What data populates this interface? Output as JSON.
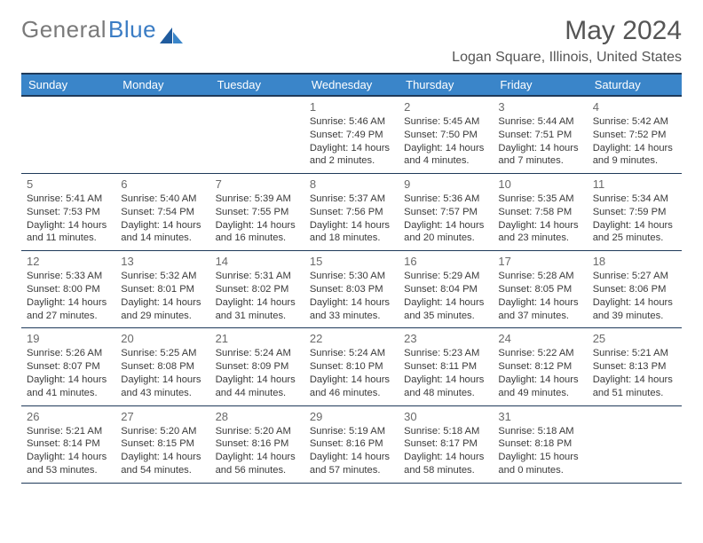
{
  "logo": {
    "part1": "General",
    "part2": "Blue"
  },
  "title": "May 2024",
  "location": "Logan Square, Illinois, United States",
  "colors": {
    "header_bg": "#3a85c9",
    "header_text": "#ffffff",
    "border": "#1f3a5a",
    "body_text": "#3a3a3a",
    "daynum": "#6a6a6a",
    "logo_gray": "#7a7a7a",
    "logo_blue": "#3a7cc4",
    "title_color": "#555555",
    "background": "#ffffff"
  },
  "typography": {
    "month_title_size": 30,
    "location_size": 16,
    "dayhead_size": 13,
    "daynum_size": 13,
    "detail_size": 11.2,
    "font_family": "Arial"
  },
  "day_names": [
    "Sunday",
    "Monday",
    "Tuesday",
    "Wednesday",
    "Thursday",
    "Friday",
    "Saturday"
  ],
  "weeks": [
    [
      null,
      null,
      null,
      {
        "n": "1",
        "sr": "5:46 AM",
        "ss": "7:49 PM",
        "dl": "14 hours and 2 minutes."
      },
      {
        "n": "2",
        "sr": "5:45 AM",
        "ss": "7:50 PM",
        "dl": "14 hours and 4 minutes."
      },
      {
        "n": "3",
        "sr": "5:44 AM",
        "ss": "7:51 PM",
        "dl": "14 hours and 7 minutes."
      },
      {
        "n": "4",
        "sr": "5:42 AM",
        "ss": "7:52 PM",
        "dl": "14 hours and 9 minutes."
      }
    ],
    [
      {
        "n": "5",
        "sr": "5:41 AM",
        "ss": "7:53 PM",
        "dl": "14 hours and 11 minutes."
      },
      {
        "n": "6",
        "sr": "5:40 AM",
        "ss": "7:54 PM",
        "dl": "14 hours and 14 minutes."
      },
      {
        "n": "7",
        "sr": "5:39 AM",
        "ss": "7:55 PM",
        "dl": "14 hours and 16 minutes."
      },
      {
        "n": "8",
        "sr": "5:37 AM",
        "ss": "7:56 PM",
        "dl": "14 hours and 18 minutes."
      },
      {
        "n": "9",
        "sr": "5:36 AM",
        "ss": "7:57 PM",
        "dl": "14 hours and 20 minutes."
      },
      {
        "n": "10",
        "sr": "5:35 AM",
        "ss": "7:58 PM",
        "dl": "14 hours and 23 minutes."
      },
      {
        "n": "11",
        "sr": "5:34 AM",
        "ss": "7:59 PM",
        "dl": "14 hours and 25 minutes."
      }
    ],
    [
      {
        "n": "12",
        "sr": "5:33 AM",
        "ss": "8:00 PM",
        "dl": "14 hours and 27 minutes."
      },
      {
        "n": "13",
        "sr": "5:32 AM",
        "ss": "8:01 PM",
        "dl": "14 hours and 29 minutes."
      },
      {
        "n": "14",
        "sr": "5:31 AM",
        "ss": "8:02 PM",
        "dl": "14 hours and 31 minutes."
      },
      {
        "n": "15",
        "sr": "5:30 AM",
        "ss": "8:03 PM",
        "dl": "14 hours and 33 minutes."
      },
      {
        "n": "16",
        "sr": "5:29 AM",
        "ss": "8:04 PM",
        "dl": "14 hours and 35 minutes."
      },
      {
        "n": "17",
        "sr": "5:28 AM",
        "ss": "8:05 PM",
        "dl": "14 hours and 37 minutes."
      },
      {
        "n": "18",
        "sr": "5:27 AM",
        "ss": "8:06 PM",
        "dl": "14 hours and 39 minutes."
      }
    ],
    [
      {
        "n": "19",
        "sr": "5:26 AM",
        "ss": "8:07 PM",
        "dl": "14 hours and 41 minutes."
      },
      {
        "n": "20",
        "sr": "5:25 AM",
        "ss": "8:08 PM",
        "dl": "14 hours and 43 minutes."
      },
      {
        "n": "21",
        "sr": "5:24 AM",
        "ss": "8:09 PM",
        "dl": "14 hours and 44 minutes."
      },
      {
        "n": "22",
        "sr": "5:24 AM",
        "ss": "8:10 PM",
        "dl": "14 hours and 46 minutes."
      },
      {
        "n": "23",
        "sr": "5:23 AM",
        "ss": "8:11 PM",
        "dl": "14 hours and 48 minutes."
      },
      {
        "n": "24",
        "sr": "5:22 AM",
        "ss": "8:12 PM",
        "dl": "14 hours and 49 minutes."
      },
      {
        "n": "25",
        "sr": "5:21 AM",
        "ss": "8:13 PM",
        "dl": "14 hours and 51 minutes."
      }
    ],
    [
      {
        "n": "26",
        "sr": "5:21 AM",
        "ss": "8:14 PM",
        "dl": "14 hours and 53 minutes."
      },
      {
        "n": "27",
        "sr": "5:20 AM",
        "ss": "8:15 PM",
        "dl": "14 hours and 54 minutes."
      },
      {
        "n": "28",
        "sr": "5:20 AM",
        "ss": "8:16 PM",
        "dl": "14 hours and 56 minutes."
      },
      {
        "n": "29",
        "sr": "5:19 AM",
        "ss": "8:16 PM",
        "dl": "14 hours and 57 minutes."
      },
      {
        "n": "30",
        "sr": "5:18 AM",
        "ss": "8:17 PM",
        "dl": "14 hours and 58 minutes."
      },
      {
        "n": "31",
        "sr": "5:18 AM",
        "ss": "8:18 PM",
        "dl": "15 hours and 0 minutes."
      },
      null
    ]
  ],
  "labels": {
    "sunrise": "Sunrise:",
    "sunset": "Sunset:",
    "daylight": "Daylight:"
  }
}
